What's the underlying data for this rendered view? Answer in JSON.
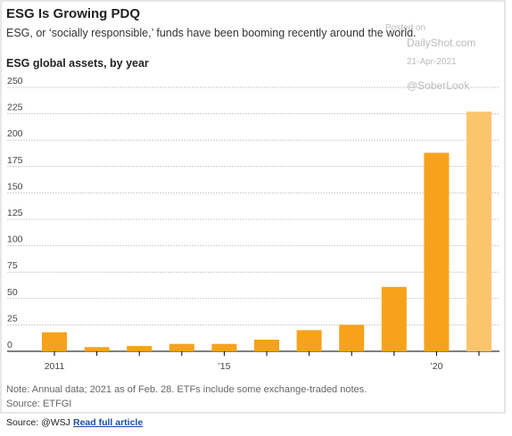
{
  "chart_data": {
    "type": "bar",
    "title": "ESG Is Growing PDQ",
    "subtitle": "ESG, or ‘socially responsible,’ funds have been booming recently around the world.",
    "y_label": "ESG global assets, by year",
    "categories": [
      "2011",
      null,
      null,
      null,
      "’15",
      null,
      null,
      null,
      null,
      "’20",
      null
    ],
    "values": [
      18,
      4,
      5,
      7,
      7,
      11,
      20,
      25,
      61,
      188,
      227
    ],
    "colors": [
      "#f7a21b",
      "#f7a21b",
      "#f7a21b",
      "#f7a21b",
      "#f7a21b",
      "#f7a21b",
      "#f7a21b",
      "#f7a21b",
      "#f7a21b",
      "#f7a21b",
      "#fbc56e"
    ],
    "ylim": [
      0,
      250
    ],
    "yticks": [
      0,
      25,
      50,
      75,
      100,
      125,
      150,
      175,
      200,
      225,
      250
    ],
    "grid": true,
    "note": "Note: Annual data; 2021 as of Feb. 28. ETFs include some exchange-traded notes.",
    "source": "Source: ETFGI",
    "watermark": [
      "Posted on",
      "DailyShot.com",
      "21-Apr-2021",
      "@SoberLook"
    ]
  },
  "footer": {
    "source": "Source: @WSJ",
    "link": "Read full article"
  }
}
